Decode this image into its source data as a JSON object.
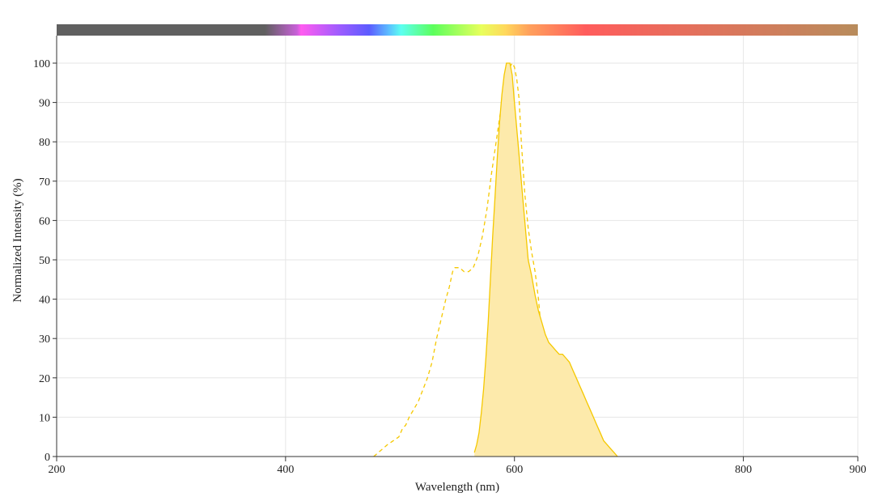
{
  "chart_data": {
    "type": "area",
    "title": "",
    "xlabel": "Wavelength (nm)",
    "ylabel": "Normalized Intensity (%)",
    "xlim": [
      200,
      900
    ],
    "ylim": [
      0,
      100
    ],
    "x_ticks": [
      200,
      400,
      600,
      800,
      900
    ],
    "y_ticks": [
      0,
      10,
      20,
      30,
      40,
      50,
      60,
      70,
      80,
      90,
      100
    ],
    "grid": true,
    "legend": "none",
    "spectrum_bar": true,
    "series": [
      {
        "role": "excitation",
        "style": "dashed",
        "color": "#f5c800",
        "points": [
          [
            477,
            0
          ],
          [
            481,
            1
          ],
          [
            485,
            2
          ],
          [
            489,
            3
          ],
          [
            494,
            4
          ],
          [
            499,
            5
          ],
          [
            502,
            7
          ],
          [
            505,
            8
          ],
          [
            508,
            10
          ],
          [
            512,
            12
          ],
          [
            516,
            14
          ],
          [
            520,
            17
          ],
          [
            524,
            20
          ],
          [
            528,
            24
          ],
          [
            532,
            30
          ],
          [
            536,
            35
          ],
          [
            540,
            40
          ],
          [
            543,
            43
          ],
          [
            546,
            47
          ],
          [
            548,
            48
          ],
          [
            552,
            48
          ],
          [
            556,
            47
          ],
          [
            560,
            47
          ],
          [
            564,
            48
          ],
          [
            568,
            51
          ],
          [
            572,
            56
          ],
          [
            576,
            63
          ],
          [
            580,
            72
          ],
          [
            584,
            80
          ],
          [
            588,
            88
          ],
          [
            591,
            93
          ],
          [
            594,
            97
          ],
          [
            596,
            99
          ],
          [
            598,
            100
          ],
          [
            600,
            99
          ],
          [
            602,
            96
          ],
          [
            604,
            91
          ],
          [
            606,
            80
          ],
          [
            609,
            67
          ],
          [
            612,
            58
          ],
          [
            615,
            52
          ],
          [
            618,
            47
          ],
          [
            621,
            40
          ],
          [
            624,
            30
          ],
          [
            627,
            20
          ],
          [
            630,
            10
          ],
          [
            633,
            3
          ],
          [
            635,
            0
          ]
        ]
      },
      {
        "role": "emission",
        "style": "filled",
        "color": "#f5c800",
        "fill": "#fdeaab",
        "points": [
          [
            565,
            1
          ],
          [
            567,
            3
          ],
          [
            569,
            6
          ],
          [
            571,
            11
          ],
          [
            573,
            17
          ],
          [
            575,
            25
          ],
          [
            577,
            34
          ],
          [
            579,
            45
          ],
          [
            581,
            56
          ],
          [
            583,
            66
          ],
          [
            585,
            76
          ],
          [
            587,
            85
          ],
          [
            589,
            92
          ],
          [
            591,
            97
          ],
          [
            593,
            100
          ],
          [
            596,
            100
          ],
          [
            598,
            97
          ],
          [
            600,
            90
          ],
          [
            603,
            80
          ],
          [
            606,
            70
          ],
          [
            609,
            60
          ],
          [
            612,
            50
          ],
          [
            615,
            46
          ],
          [
            618,
            41
          ],
          [
            621,
            37
          ],
          [
            624,
            34
          ],
          [
            627,
            31
          ],
          [
            630,
            29
          ],
          [
            633,
            28
          ],
          [
            636,
            27
          ],
          [
            639,
            26
          ],
          [
            642,
            26
          ],
          [
            645,
            25
          ],
          [
            648,
            24
          ],
          [
            651,
            22
          ],
          [
            654,
            20
          ],
          [
            657,
            18
          ],
          [
            660,
            16
          ],
          [
            663,
            14
          ],
          [
            666,
            12
          ],
          [
            669,
            10
          ],
          [
            672,
            8
          ],
          [
            675,
            6
          ],
          [
            678,
            4
          ],
          [
            681,
            3
          ],
          [
            684,
            2
          ],
          [
            687,
            1
          ],
          [
            690,
            0
          ]
        ]
      }
    ]
  }
}
